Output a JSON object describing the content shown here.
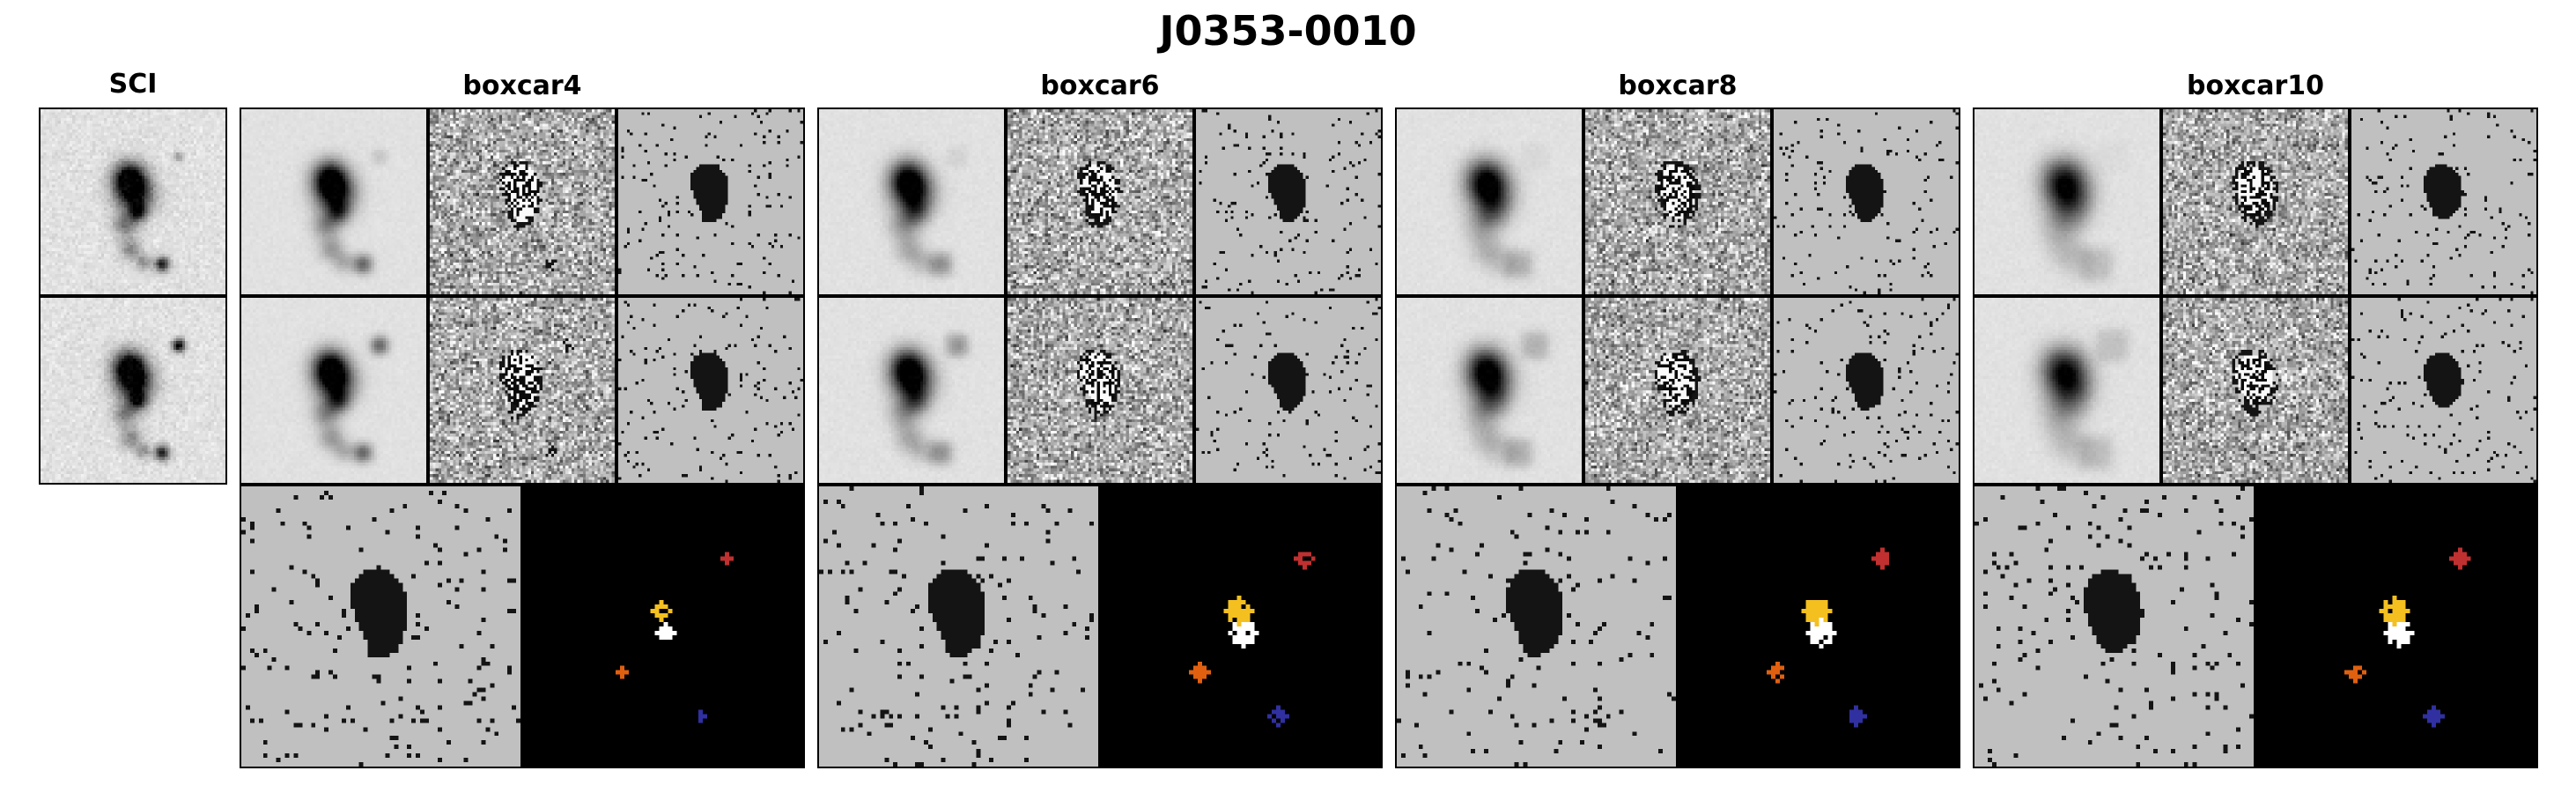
{
  "figure": {
    "title": "J0353-0010",
    "sci_label": "SCI",
    "groups": [
      {
        "label": "boxcar4",
        "width": 4
      },
      {
        "label": "boxcar6",
        "width": 6
      },
      {
        "label": "boxcar8",
        "width": 8
      },
      {
        "label": "boxcar10",
        "width": 10
      }
    ],
    "colors": {
      "background": "#ffffff",
      "panel_gray": "#c0c0c0",
      "border": "#000000",
      "segmentation_bg": "#000000",
      "segmentation_palette": [
        "#ffffff",
        "#f4c020",
        "#e06010",
        "#c03030",
        "#a03070",
        "#3030a0"
      ]
    }
  }
}
